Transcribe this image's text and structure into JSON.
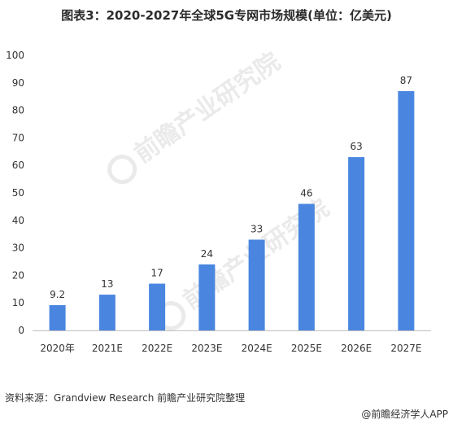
{
  "header": {
    "title": "图表3：2020-2027年全球5G专网市场规模(单位：亿美元)"
  },
  "footer": {
    "source": "资料来源：Grandview Research 前瞻产业研究院整理",
    "credit": "@前瞻经济学人APP"
  },
  "watermark": {
    "text": "前瞻产业研究院"
  },
  "chart_data": {
    "type": "bar",
    "categories": [
      "2020年",
      "2021E",
      "2022E",
      "2023E",
      "2024E",
      "2025E",
      "2026E",
      "2027E"
    ],
    "values": [
      9.2,
      13,
      17,
      24,
      33,
      46,
      63,
      87
    ],
    "data_labels": [
      "9.2",
      "13",
      "17",
      "24",
      "33",
      "46",
      "63",
      "87"
    ],
    "ylim": [
      0,
      100
    ],
    "yticks": [
      0,
      10,
      20,
      30,
      40,
      50,
      60,
      70,
      80,
      90,
      100
    ],
    "bar_color": "#4a86e0",
    "grid": false,
    "xlabel": "",
    "ylabel": ""
  }
}
